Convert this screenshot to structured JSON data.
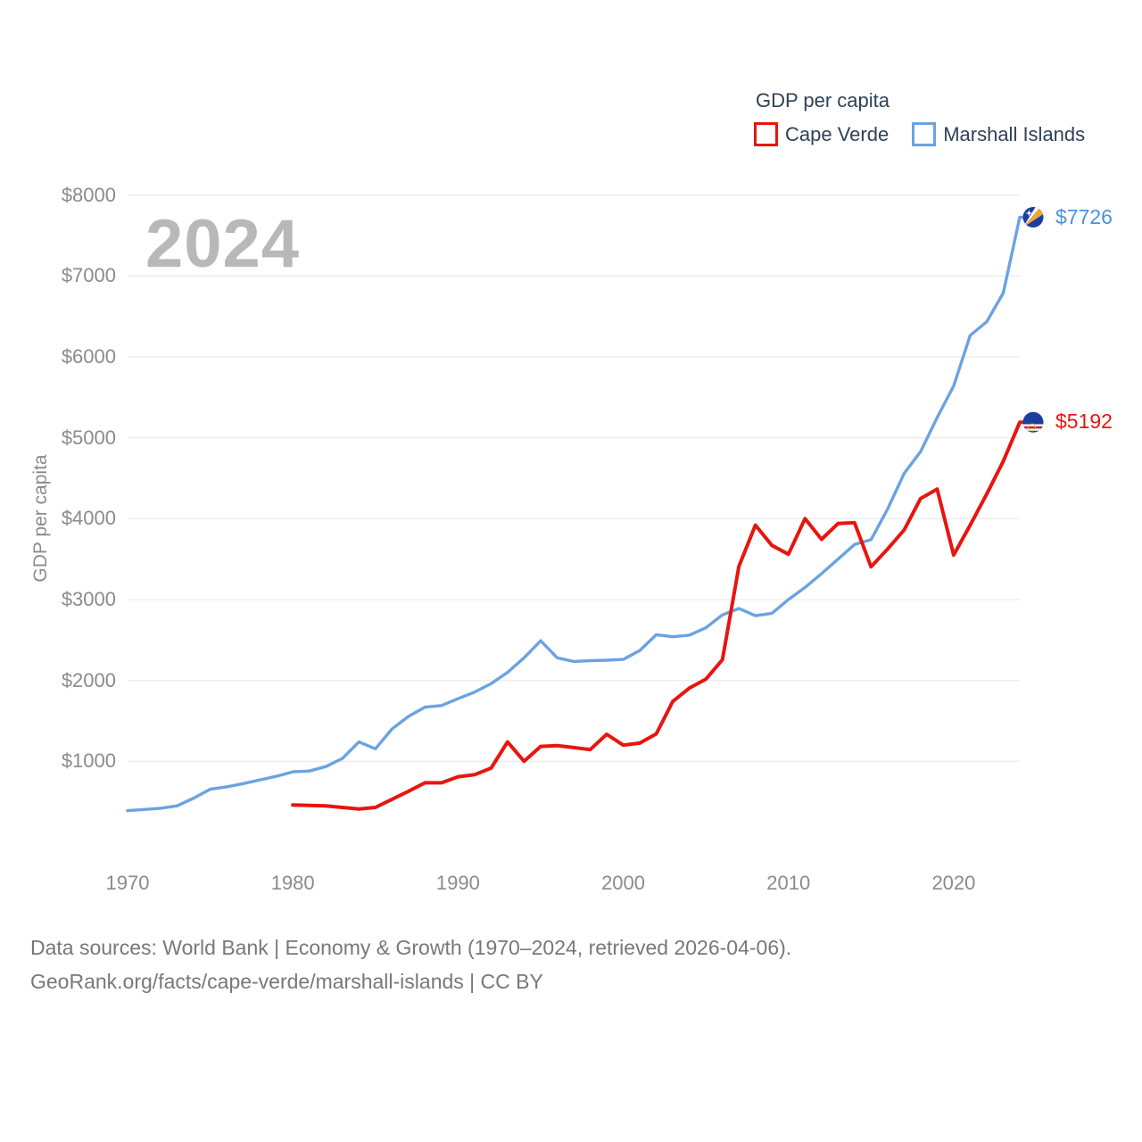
{
  "watermark": "2024",
  "legend": {
    "title": "GDP per capita",
    "series": [
      {
        "label": "Cape Verde",
        "color": "#e8150f"
      },
      {
        "label": "Marshall Islands",
        "color": "#6aa3e1"
      }
    ]
  },
  "y_axis": {
    "title": "GDP per capita",
    "ticks": [
      {
        "value": 8000,
        "label": "$8000"
      },
      {
        "value": 7000,
        "label": "$7000"
      },
      {
        "value": 6000,
        "label": "$6000"
      },
      {
        "value": 5000,
        "label": "$5000"
      },
      {
        "value": 4000,
        "label": "$4000"
      },
      {
        "value": 3000,
        "label": "$3000"
      },
      {
        "value": 2000,
        "label": "$2000"
      },
      {
        "value": 1000,
        "label": "$1000"
      }
    ]
  },
  "x_axis": {
    "ticks": [
      {
        "value": 1970,
        "label": "1970"
      },
      {
        "value": 1980,
        "label": "1980"
      },
      {
        "value": 1990,
        "label": "1990"
      },
      {
        "value": 2000,
        "label": "2000"
      },
      {
        "value": 2010,
        "label": "2010"
      },
      {
        "value": 2020,
        "label": "2020"
      }
    ]
  },
  "footer": {
    "line1": "Data sources: World Bank | Economy & Growth (1970–2024, retrieved 2026-04-06).",
    "line2": "GeoRank.org/facts/cape-verde/marshall-islands | CC BY"
  },
  "chart_data": {
    "type": "line",
    "title": "GDP per capita",
    "xlabel": "",
    "ylabel": "GDP per capita",
    "x_range": [
      1970,
      2024
    ],
    "ylim": [
      0,
      8000
    ],
    "grid": "horizontal",
    "legend_position": "top-right",
    "series": [
      {
        "name": "Marshall Islands",
        "color": "#6aa3e1",
        "label_color": "#4a91e2",
        "flag": "marshall-islands",
        "end_label": "$7726",
        "x_start": 1970,
        "x_step": 1,
        "values": [
          390,
          405,
          420,
          450,
          545,
          655,
          685,
          725,
          770,
          815,
          870,
          880,
          935,
          1035,
          1240,
          1155,
          1400,
          1555,
          1670,
          1690,
          1775,
          1855,
          1960,
          2100,
          2280,
          2490,
          2280,
          2235,
          2245,
          2250,
          2260,
          2370,
          2565,
          2540,
          2560,
          2650,
          2810,
          2890,
          2800,
          2830,
          3000,
          3150,
          3320,
          3500,
          3680,
          3740,
          4120,
          4560,
          4830,
          5250,
          5640,
          6265,
          6435,
          6790,
          7726
        ]
      },
      {
        "name": "Cape Verde",
        "color": "#e8150f",
        "label_color": "#e8150f",
        "flag": "cape-verde",
        "end_label": "$5192",
        "x_start": 1980,
        "x_step": 1,
        "values": [
          460,
          455,
          450,
          430,
          410,
          430,
          530,
          630,
          735,
          735,
          810,
          835,
          915,
          1240,
          1000,
          1185,
          1195,
          1170,
          1145,
          1335,
          1200,
          1225,
          1340,
          1740,
          1905,
          2015,
          2255,
          3410,
          3920,
          3670,
          3560,
          4000,
          3745,
          3940,
          3950,
          3405,
          3625,
          3860,
          4250,
          4365,
          3550,
          3920,
          4305,
          4710,
          5192
        ]
      }
    ]
  }
}
